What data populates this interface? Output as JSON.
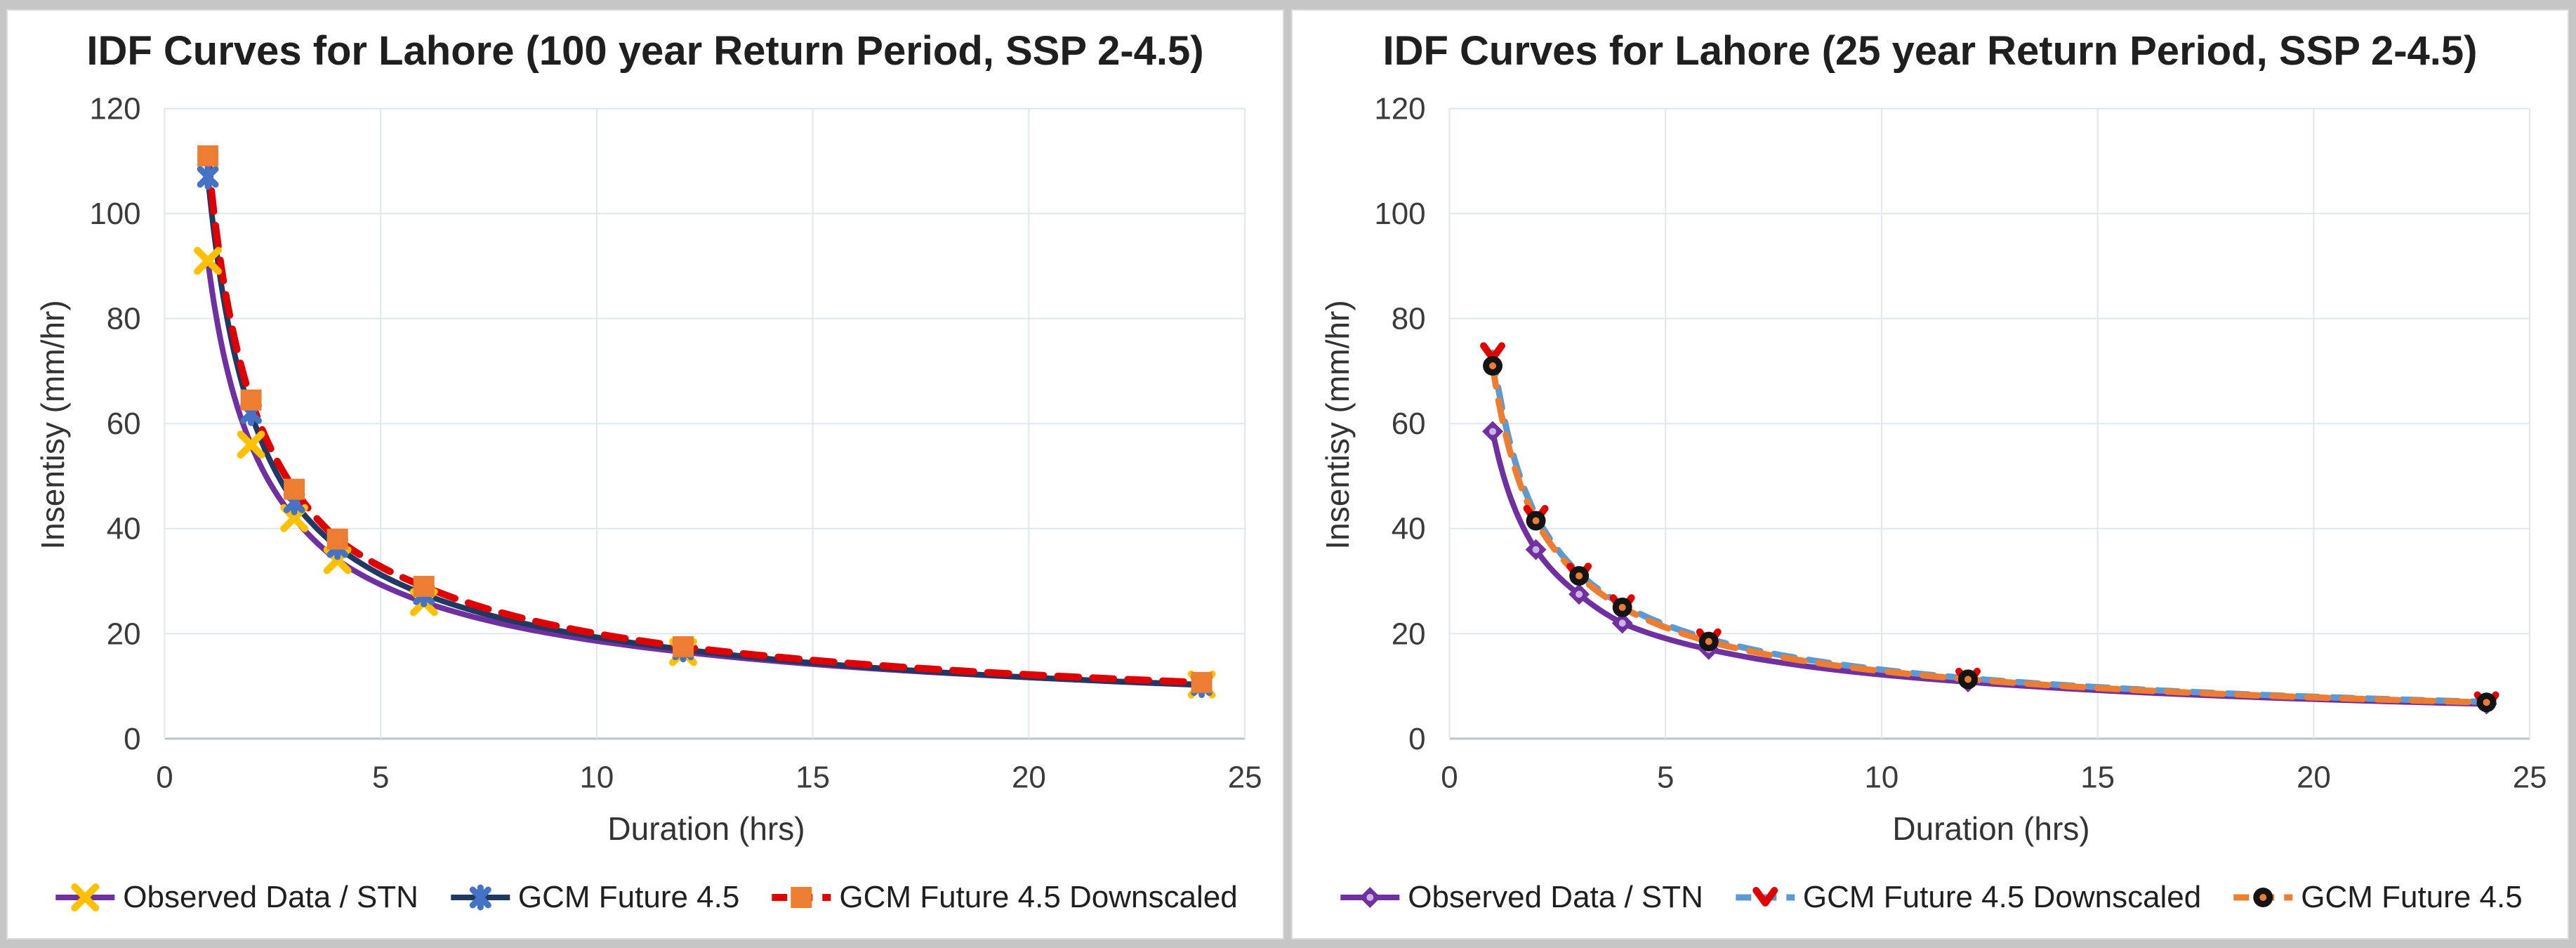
{
  "page": {
    "background_color": "#c6c6c6",
    "panel_color": "#ffffff",
    "panel_border_color": "#d9d9d9",
    "gridline_color": "#dfe7ee",
    "axis_line_color": "#b9c4cf",
    "text_color": "#1f1f1f"
  },
  "chart_data": [
    {
      "type": "line",
      "title": "IDF Curves for Lahore (100 year Return Period, SSP 2-4.5)",
      "xlabel": "Duration (hrs)",
      "ylabel": "Insentisy (mm/hr)",
      "xlim": [
        0,
        25
      ],
      "ylim": [
        0,
        120
      ],
      "xticks": [
        0,
        5,
        10,
        15,
        20,
        25
      ],
      "yticks": [
        0,
        20,
        40,
        60,
        80,
        100,
        120
      ],
      "grid": true,
      "legend_position": "bottom",
      "x": [
        1,
        2,
        3,
        4,
        6,
        12,
        24
      ],
      "series": [
        {
          "name": "Observed Data / STN",
          "values": [
            91,
            56,
            42,
            34,
            26,
            16.5,
            10.3
          ],
          "line_color": "#7030A0",
          "line_style": "solid",
          "line_width": 8,
          "marker": "x",
          "marker_color": "#FFC000"
        },
        {
          "name": "GCM Future 4.5",
          "values": [
            107,
            62,
            45,
            36.5,
            27.5,
            17,
            10.2
          ],
          "line_color": "#1F3864",
          "line_style": "solid",
          "line_width": 8,
          "marker": "x-star",
          "marker_color": "#4472C4"
        },
        {
          "name": "GCM Future 4.5 Downscaled",
          "values": [
            111,
            64.5,
            47.5,
            38,
            29,
            17.5,
            10.7
          ],
          "line_color": "#E00000",
          "line_style": "dashed",
          "line_width": 10,
          "marker": "square",
          "marker_color": "#ED7D31"
        }
      ]
    },
    {
      "type": "line",
      "title": "IDF Curves for Lahore (25 year Return Period, SSP 2-4.5)",
      "xlabel": "Duration (hrs)",
      "ylabel": "Insentisy (mm/hr)",
      "xlim": [
        0,
        25
      ],
      "ylim": [
        0,
        120
      ],
      "xticks": [
        0,
        5,
        10,
        15,
        20,
        25
      ],
      "yticks": [
        0,
        20,
        40,
        60,
        80,
        100,
        120
      ],
      "grid": true,
      "legend_position": "bottom",
      "x": [
        1,
        2,
        3,
        4,
        6,
        12,
        24
      ],
      "series": [
        {
          "name": "Observed Data / STN",
          "values": [
            58.5,
            36,
            27.5,
            22,
            17,
            10.8,
            6.6
          ],
          "line_color": "#7030A0",
          "line_style": "solid",
          "line_width": 8,
          "marker": "diamond",
          "marker_color": "#7030A0",
          "marker_dot_color": "#CBB3E3"
        },
        {
          "name": "GCM Future 4.5 Downscaled",
          "values": [
            73.5,
            42.5,
            31.5,
            25.5,
            19,
            11.5,
            7
          ],
          "line_color": "#5B9BD5",
          "line_style": "dashed",
          "line_width": 9,
          "marker": "caret",
          "marker_color": "#E00000"
        },
        {
          "name": "GCM Future 4.5",
          "values": [
            71,
            41.5,
            31,
            25,
            18.5,
            11.3,
            6.9
          ],
          "line_color": "#ED7D31",
          "line_style": "dashed",
          "line_width": 9,
          "marker": "circle-dot",
          "marker_color": "#141414",
          "marker_dot_color": "#ED7D31"
        }
      ]
    }
  ]
}
